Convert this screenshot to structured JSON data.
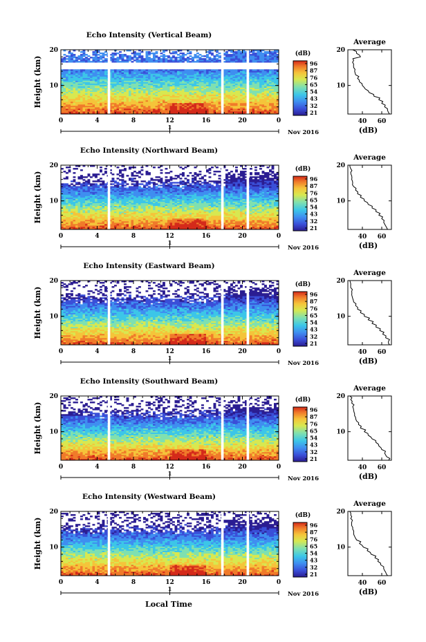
{
  "footer": {
    "xlabel": "Local Time"
  },
  "colorbar": {
    "unit_label": "(dB)",
    "tick_labels": [
      "96",
      "87",
      "76",
      "65",
      "54",
      "43",
      "32",
      "21"
    ]
  },
  "date_label": "Nov 2016",
  "day_label": "1",
  "x_ticks": [
    "0",
    "4",
    "8",
    "12",
    "16",
    "20",
    "0"
  ],
  "y_ticks": [
    "20",
    "10"
  ],
  "avg_title": "Average",
  "avg_xlabel": "(dB)",
  "avg_x_ticks": [
    "40",
    "60"
  ],
  "avg_y_ticks": [
    "20",
    "10"
  ],
  "colors": {
    "scale": [
      "#2b1d92",
      "#3a4fd8",
      "#3f8ef0",
      "#3cc6e8",
      "#7fe0b0",
      "#d8e850",
      "#f5c43a",
      "#f07a2a",
      "#d42a1a"
    ],
    "gap": "#ffffff"
  },
  "chart_data": [
    {
      "type": "heatmap",
      "title": "Echo Intensity (Vertical Beam)",
      "ylabel": "Height (km)",
      "xlabel": "",
      "x_range_hours": [
        0,
        24
      ],
      "y_range_km": [
        2,
        20
      ],
      "color_range_db": [
        21,
        96
      ],
      "data_gaps_hours": [
        5.3,
        17.8,
        20.6
      ],
      "average_profile": {
        "xlabel": "(dB)",
        "x_range": [
          25,
          70
        ],
        "height_km": [
          2,
          3,
          4,
          5,
          6,
          7,
          8,
          9,
          10,
          11,
          12,
          13,
          14,
          15,
          16,
          17,
          18,
          19,
          20
        ],
        "db": [
          68,
          66,
          63,
          60,
          57,
          52,
          47,
          43,
          40,
          37,
          35,
          33,
          32,
          31,
          31,
          31,
          38,
          34,
          30
        ]
      }
    },
    {
      "type": "heatmap",
      "title": "Echo Intensity (Northward Beam)",
      "ylabel": "Height (km)",
      "xlabel": "",
      "x_range_hours": [
        0,
        24
      ],
      "y_range_km": [
        2,
        20
      ],
      "color_range_db": [
        21,
        96
      ],
      "data_gaps_hours": [
        5.3,
        17.8,
        20.6
      ],
      "average_profile": {
        "xlabel": "(dB)",
        "x_range": [
          25,
          70
        ],
        "height_km": [
          2,
          3,
          4,
          5,
          6,
          7,
          8,
          9,
          10,
          11,
          12,
          13,
          14,
          15,
          16,
          17,
          18,
          19,
          20
        ],
        "db": [
          66,
          64,
          62,
          60,
          57,
          54,
          50,
          46,
          42,
          38,
          35,
          33,
          31,
          30,
          29,
          29,
          28,
          28,
          27
        ]
      }
    },
    {
      "type": "heatmap",
      "title": "Echo Intensity (Eastward Beam)",
      "ylabel": "Height (km)",
      "xlabel": "",
      "x_range_hours": [
        0,
        24
      ],
      "y_range_km": [
        2,
        20
      ],
      "color_range_db": [
        21,
        96
      ],
      "data_gaps_hours": [
        5.3,
        17.8,
        20.6
      ],
      "average_profile": {
        "xlabel": "(dB)",
        "x_range": [
          25,
          70
        ],
        "height_km": [
          2,
          3,
          4,
          5,
          6,
          7,
          8,
          9,
          10,
          11,
          12,
          13,
          14,
          15,
          16,
          17,
          18,
          19,
          20
        ],
        "db": [
          68,
          67,
          64,
          61,
          58,
          54,
          50,
          46,
          42,
          38,
          35,
          33,
          31,
          30,
          29,
          29,
          28,
          28,
          27
        ]
      }
    },
    {
      "type": "heatmap",
      "title": "Echo Intensity (Southward Beam)",
      "ylabel": "Height (km)",
      "xlabel": "",
      "x_range_hours": [
        0,
        24
      ],
      "y_range_km": [
        2,
        20
      ],
      "color_range_db": [
        21,
        96
      ],
      "data_gaps_hours": [
        5.3,
        17.8,
        20.6
      ],
      "average_profile": {
        "xlabel": "(dB)",
        "x_range": [
          25,
          70
        ],
        "height_km": [
          2,
          3,
          4,
          5,
          6,
          7,
          8,
          9,
          10,
          11,
          12,
          13,
          14,
          15,
          16,
          17,
          18,
          19,
          20
        ],
        "db": [
          67,
          65,
          63,
          60,
          57,
          54,
          50,
          46,
          42,
          38,
          36,
          34,
          33,
          32,
          31,
          30,
          29,
          28,
          27
        ]
      }
    },
    {
      "type": "heatmap",
      "title": "Echo Intensity (Westward Beam)",
      "ylabel": "Height (km)",
      "xlabel": "Local Time",
      "x_range_hours": [
        0,
        24
      ],
      "y_range_km": [
        2,
        20
      ],
      "color_range_db": [
        21,
        96
      ],
      "data_gaps_hours": [
        5.3,
        17.8,
        20.6
      ],
      "average_profile": {
        "xlabel": "(dB)",
        "x_range": [
          25,
          70
        ],
        "height_km": [
          2,
          3,
          4,
          5,
          6,
          7,
          8,
          9,
          10,
          11,
          12,
          13,
          14,
          15,
          16,
          17,
          18,
          19,
          20
        ],
        "db": [
          66,
          64,
          62,
          59,
          56,
          53,
          49,
          45,
          41,
          37,
          34,
          32,
          31,
          30,
          29,
          29,
          28,
          28,
          27
        ]
      }
    }
  ]
}
